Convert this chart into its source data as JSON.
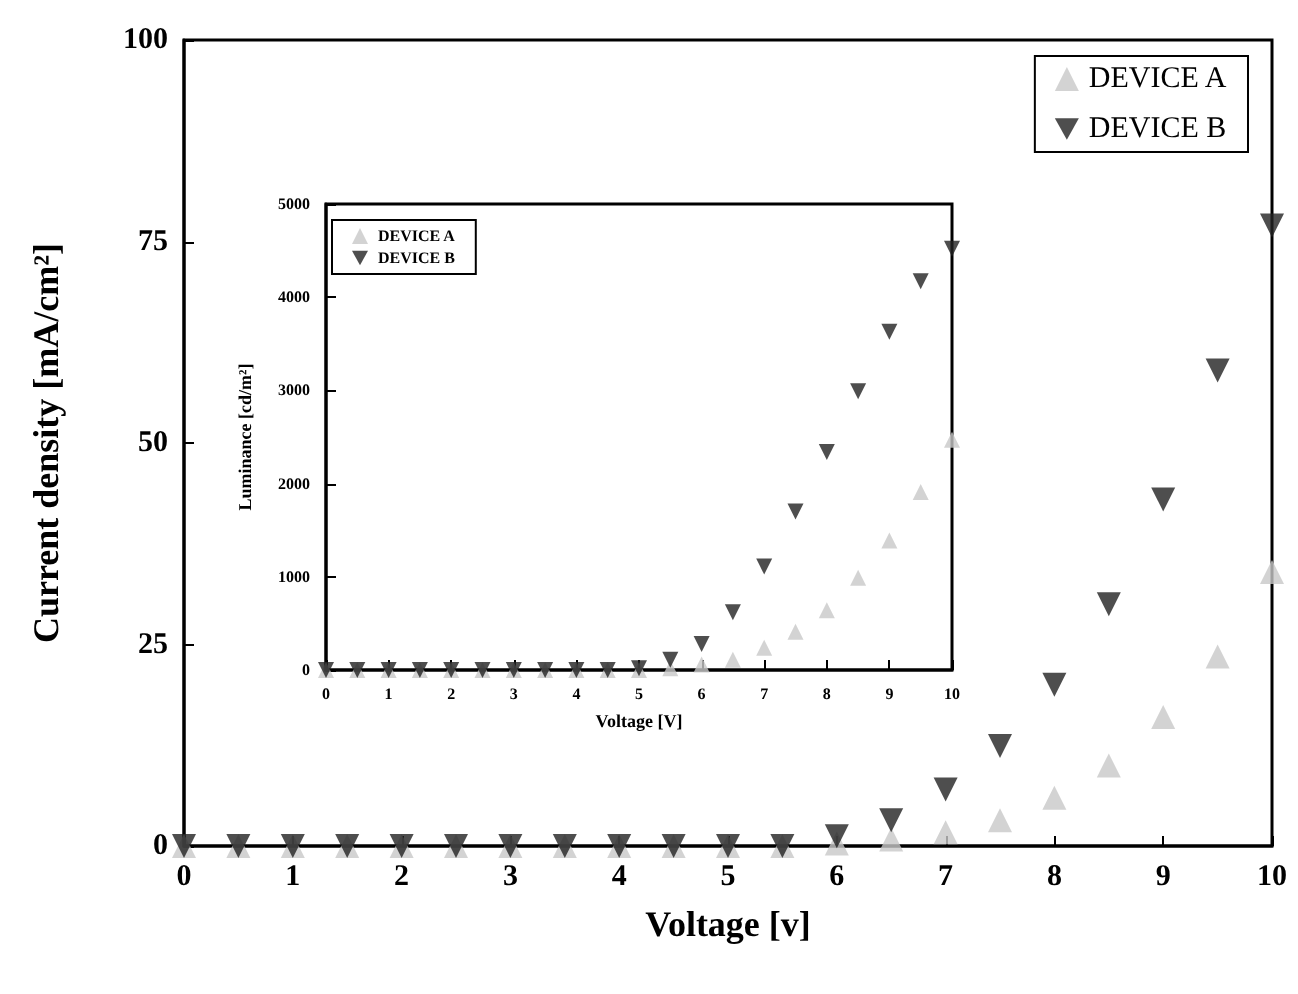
{
  "chart_data": [
    {
      "type": "scatter",
      "xlabel": "Voltage [v]",
      "ylabel": "Current density [mA/cm²]",
      "x": [
        0,
        0.5,
        1,
        1.5,
        2,
        2.5,
        3,
        3.5,
        4,
        4.5,
        5,
        5.5,
        6,
        6.5,
        7,
        7.5,
        8,
        8.5,
        9,
        9.5,
        10
      ],
      "xlim": [
        0,
        10
      ],
      "xticks": [
        0,
        1,
        2,
        3,
        4,
        5,
        6,
        7,
        8,
        9,
        10
      ],
      "ylim": [
        0,
        100
      ],
      "yticks": [
        0,
        25,
        50,
        75,
        100
      ],
      "grid": false,
      "legend": "top right",
      "series": [
        {
          "name": "DEVICE A",
          "color": "#c8c8c8",
          "marker": "triangle",
          "values": [
            0,
            0,
            0,
            0,
            0,
            0,
            0,
            0,
            0,
            0,
            0,
            0,
            0.3,
            0.8,
            1.7,
            3.2,
            6,
            10,
            16,
            23.5,
            34
          ]
        },
        {
          "name": "DEVICE B",
          "color": "#222222",
          "marker": "triangle-down",
          "values": [
            0,
            0,
            0,
            0,
            0,
            0,
            0,
            0,
            0,
            0,
            0,
            0,
            1.2,
            3.2,
            7,
            12.4,
            20,
            30,
            43,
            59,
            77
          ]
        }
      ]
    },
    {
      "type": "scatter",
      "xlabel": "Voltage [V]",
      "ylabel": "Luminance [cd/m²]",
      "x": [
        0,
        0.5,
        1,
        1.5,
        2,
        2.5,
        3,
        3.5,
        4,
        4.5,
        5,
        5.5,
        6,
        6.5,
        7,
        7.5,
        8,
        8.5,
        9,
        9.5,
        10
      ],
      "xlim": [
        0,
        10
      ],
      "xticks": [
        0,
        1,
        2,
        3,
        4,
        5,
        6,
        7,
        8,
        9,
        10
      ],
      "ylim": [
        0,
        5000
      ],
      "yticks": [
        0,
        1000,
        2000,
        3000,
        4000,
        5000
      ],
      "grid": false,
      "legend": "top left",
      "series": [
        {
          "name": "DEVICE A",
          "color": "#c8c8c8",
          "marker": "triangle",
          "values": [
            0,
            0,
            0,
            0,
            0,
            0,
            0,
            0,
            0,
            0,
            0,
            20,
            60,
            110,
            240,
            410,
            640,
            990,
            1390,
            1910,
            2470
          ]
        },
        {
          "name": "DEVICE B",
          "color": "#222222",
          "marker": "triangle-down",
          "values": [
            0,
            0,
            0,
            0,
            0,
            0,
            0,
            0,
            0,
            0,
            20,
            110,
            280,
            620,
            1110,
            1700,
            2340,
            2990,
            3630,
            4170,
            4520
          ]
        }
      ]
    }
  ]
}
